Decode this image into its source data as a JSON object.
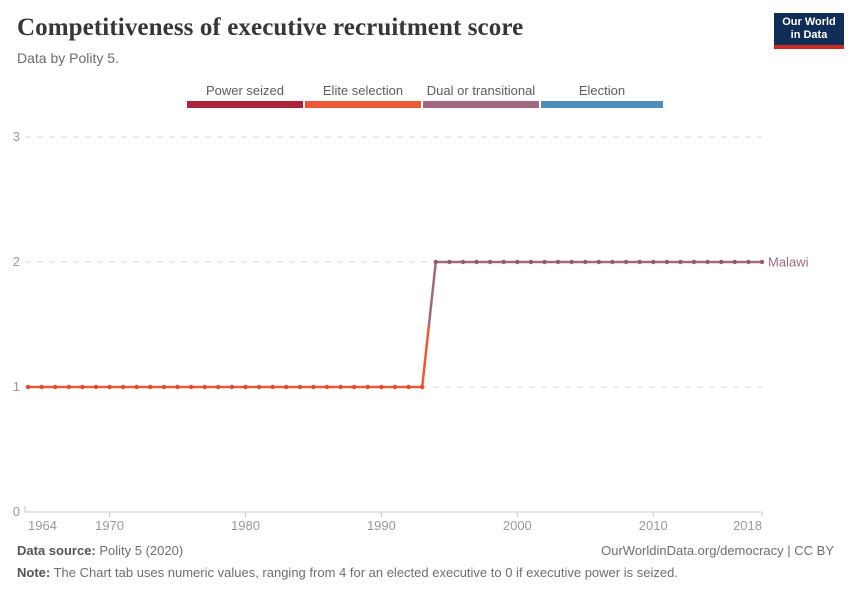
{
  "header": {
    "title": "Competitiveness of executive recruitment score",
    "subtitle": "Data by Polity 5.",
    "logo": {
      "line1": "Our World",
      "line2": "in Data",
      "bg_color": "#0f2d57",
      "stripe_color": "#ce2a21"
    }
  },
  "legend": {
    "items": [
      {
        "label": "Power seized",
        "color": "#b0223b"
      },
      {
        "label": "Elite selection",
        "color": "#ed5838"
      },
      {
        "label": "Dual or transitional",
        "color": "#a0697f"
      },
      {
        "label": "Election",
        "color": "#4d8fba"
      }
    ]
  },
  "chart_data": {
    "type": "line",
    "title": "Competitiveness of executive recruitment score",
    "entity_label": "Malawi",
    "entity_color": "#a0697f",
    "xlim": [
      1964,
      2018
    ],
    "ylim": [
      0,
      3
    ],
    "x_ticks": [
      "1964",
      "1970",
      "1980",
      "1990",
      "2000",
      "2010",
      "2018"
    ],
    "y_ticks": [
      "0",
      "1",
      "2",
      "3"
    ],
    "grid": "horizontal-dashed",
    "legend_position": "top-center",
    "value_category": {
      "1": "Elite selection",
      "2": "Dual or transitional"
    },
    "value_colors": {
      "1": "#ed5838",
      "2": "#a0697f"
    },
    "marker_colors": {
      "1": "#de4c30",
      "2": "#8f5a72"
    },
    "series": [
      {
        "name": "Malawi",
        "x": [
          1964,
          1965,
          1966,
          1967,
          1968,
          1969,
          1970,
          1971,
          1972,
          1973,
          1974,
          1975,
          1976,
          1977,
          1978,
          1979,
          1980,
          1981,
          1982,
          1983,
          1984,
          1985,
          1986,
          1987,
          1988,
          1989,
          1990,
          1991,
          1992,
          1993,
          1994,
          1995,
          1996,
          1997,
          1998,
          1999,
          2000,
          2001,
          2002,
          2003,
          2004,
          2005,
          2006,
          2007,
          2008,
          2009,
          2010,
          2011,
          2012,
          2013,
          2014,
          2015,
          2016,
          2017,
          2018
        ],
        "values": [
          1,
          1,
          1,
          1,
          1,
          1,
          1,
          1,
          1,
          1,
          1,
          1,
          1,
          1,
          1,
          1,
          1,
          1,
          1,
          1,
          1,
          1,
          1,
          1,
          1,
          1,
          1,
          1,
          1,
          1,
          2,
          2,
          2,
          2,
          2,
          2,
          2,
          2,
          2,
          2,
          2,
          2,
          2,
          2,
          2,
          2,
          2,
          2,
          2,
          2,
          2,
          2,
          2,
          2,
          2
        ]
      }
    ]
  },
  "footer": {
    "data_source_label": "Data source:",
    "data_source_value": " Polity 5 (2020)",
    "link": "OurWorldinData.org/democracy | CC BY",
    "note_label": "Note:",
    "note_text": " The Chart tab uses numeric values, ranging from 4 for an elected executive to 0 if executive power is seized."
  }
}
